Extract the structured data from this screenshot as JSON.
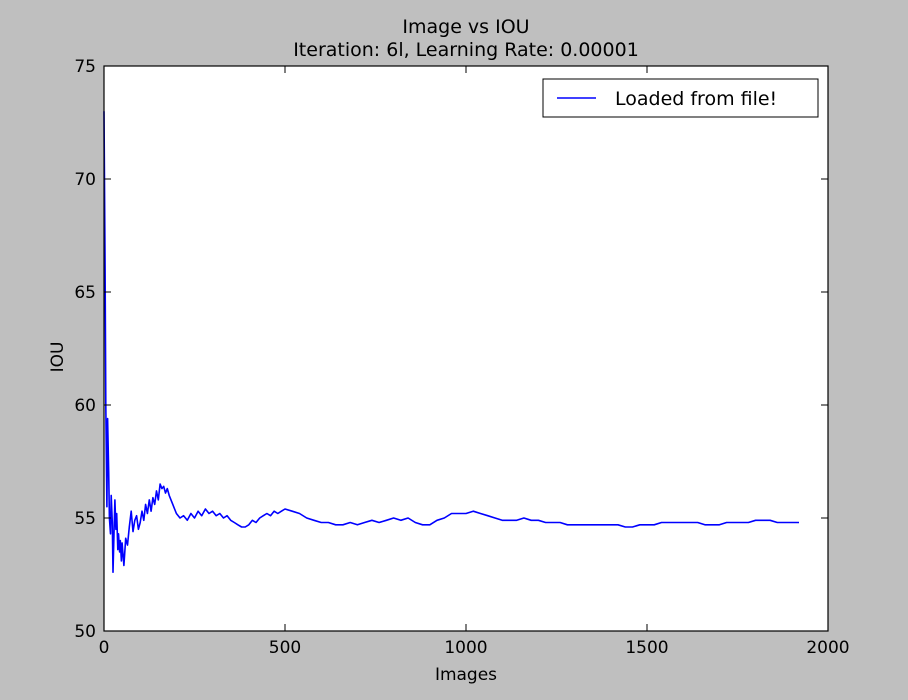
{
  "chart_data": {
    "type": "line",
    "title": "Image vs IOU",
    "subtitle": "Iteration: 6l, Learning Rate: 0.00001",
    "xlabel": "Images",
    "ylabel": "IOU",
    "xlim": [
      0,
      2000
    ],
    "ylim": [
      50,
      75
    ],
    "xticks": [
      0,
      500,
      1000,
      1500,
      2000
    ],
    "yticks": [
      50,
      55,
      60,
      65,
      70,
      75
    ],
    "xtick_labels": [
      "0",
      "500",
      "1000",
      "1500",
      "2000"
    ],
    "ytick_labels": [
      "50",
      "55",
      "60",
      "65",
      "70",
      "75"
    ],
    "grid": false,
    "legend_position": "top-right",
    "series": [
      {
        "name": "Loaded from file!",
        "color": "#0000ff",
        "x": [
          0,
          3,
          5,
          8,
          10,
          13,
          15,
          18,
          20,
          23,
          25,
          28,
          30,
          33,
          35,
          38,
          40,
          43,
          45,
          48,
          50,
          55,
          60,
          65,
          70,
          75,
          80,
          85,
          90,
          95,
          100,
          105,
          110,
          115,
          120,
          125,
          130,
          135,
          140,
          145,
          150,
          155,
          160,
          165,
          170,
          175,
          180,
          185,
          190,
          195,
          200,
          210,
          220,
          230,
          240,
          250,
          260,
          270,
          280,
          290,
          300,
          310,
          320,
          330,
          340,
          350,
          360,
          370,
          380,
          390,
          400,
          410,
          420,
          430,
          440,
          450,
          460,
          470,
          480,
          490,
          500,
          520,
          540,
          560,
          580,
          600,
          620,
          640,
          660,
          680,
          700,
          720,
          740,
          760,
          780,
          800,
          820,
          840,
          860,
          880,
          900,
          920,
          940,
          960,
          980,
          1000,
          1020,
          1040,
          1060,
          1080,
          1100,
          1120,
          1140,
          1160,
          1180,
          1200,
          1220,
          1240,
          1260,
          1280,
          1300,
          1320,
          1340,
          1360,
          1380,
          1400,
          1420,
          1440,
          1460,
          1480,
          1500,
          1520,
          1540,
          1560,
          1580,
          1600,
          1620,
          1640,
          1660,
          1680,
          1700,
          1720,
          1740,
          1760,
          1780,
          1800,
          1820,
          1840,
          1860,
          1880,
          1900,
          1920
        ],
        "values": [
          73.0,
          66.0,
          60.0,
          55.5,
          59.4,
          57.0,
          55.0,
          54.3,
          56.0,
          54.8,
          52.6,
          54.5,
          55.8,
          54.5,
          55.2,
          53.6,
          54.3,
          53.5,
          54.0,
          53.1,
          53.9,
          52.9,
          54.1,
          53.8,
          54.6,
          55.3,
          54.4,
          54.9,
          55.1,
          54.5,
          54.8,
          55.3,
          54.9,
          55.6,
          55.2,
          55.8,
          55.3,
          55.9,
          55.6,
          56.2,
          55.8,
          56.5,
          56.3,
          56.4,
          56.1,
          56.3,
          56.0,
          55.8,
          55.6,
          55.4,
          55.2,
          55.0,
          55.1,
          54.9,
          55.2,
          55.0,
          55.3,
          55.1,
          55.4,
          55.2,
          55.3,
          55.1,
          55.2,
          55.0,
          55.1,
          54.9,
          54.8,
          54.7,
          54.6,
          54.6,
          54.7,
          54.9,
          54.8,
          55.0,
          55.1,
          55.2,
          55.1,
          55.3,
          55.2,
          55.3,
          55.4,
          55.3,
          55.2,
          55.0,
          54.9,
          54.8,
          54.8,
          54.7,
          54.7,
          54.8,
          54.7,
          54.8,
          54.9,
          54.8,
          54.9,
          55.0,
          54.9,
          55.0,
          54.8,
          54.7,
          54.7,
          54.9,
          55.0,
          55.2,
          55.2,
          55.2,
          55.3,
          55.2,
          55.1,
          55.0,
          54.9,
          54.9,
          54.9,
          55.0,
          54.9,
          54.9,
          54.8,
          54.8,
          54.8,
          54.7,
          54.7,
          54.7,
          54.7,
          54.7,
          54.7,
          54.7,
          54.7,
          54.6,
          54.6,
          54.7,
          54.7,
          54.7,
          54.8,
          54.8,
          54.8,
          54.8,
          54.8,
          54.8,
          54.7,
          54.7,
          54.7,
          54.8,
          54.8,
          54.8,
          54.8,
          54.9,
          54.9,
          54.9,
          54.8,
          54.8,
          54.8,
          54.8
        ]
      }
    ]
  }
}
